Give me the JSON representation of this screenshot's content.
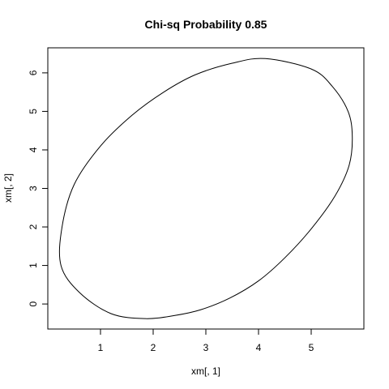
{
  "chart_data": {
    "type": "line",
    "title": "Chi-sq Probability  0.85",
    "xlabel": "xm[, 1]",
    "ylabel": "xm[, 2]",
    "xlim": [
      0.0,
      6.0
    ],
    "ylim": [
      -0.65,
      6.65
    ],
    "x_ticks": [
      "1",
      "2",
      "3",
      "4",
      "5"
    ],
    "y_ticks": [
      "0",
      "1",
      "2",
      "3",
      "4",
      "5",
      "6"
    ],
    "grid": false,
    "series": [
      {
        "ellipse_center": [
          3.0,
          3.0
        ],
        "x": [
          4.13,
          5.0,
          5.4,
          5.7,
          5.78,
          5.72,
          5.45,
          5.0,
          4.5,
          4.0,
          3.45,
          2.9,
          2.4,
          1.85,
          1.2,
          0.6,
          0.25,
          0.27,
          0.5,
          1.0,
          1.6,
          2.2,
          2.8,
          3.5,
          4.13
        ],
        "y": [
          6.37,
          6.1,
          5.65,
          5.0,
          4.35,
          3.6,
          2.8,
          1.95,
          1.2,
          0.6,
          0.15,
          -0.15,
          -0.3,
          -0.38,
          -0.25,
          0.3,
          1.0,
          2.0,
          3.1,
          4.1,
          4.9,
          5.5,
          5.95,
          6.25,
          6.37
        ]
      }
    ]
  }
}
